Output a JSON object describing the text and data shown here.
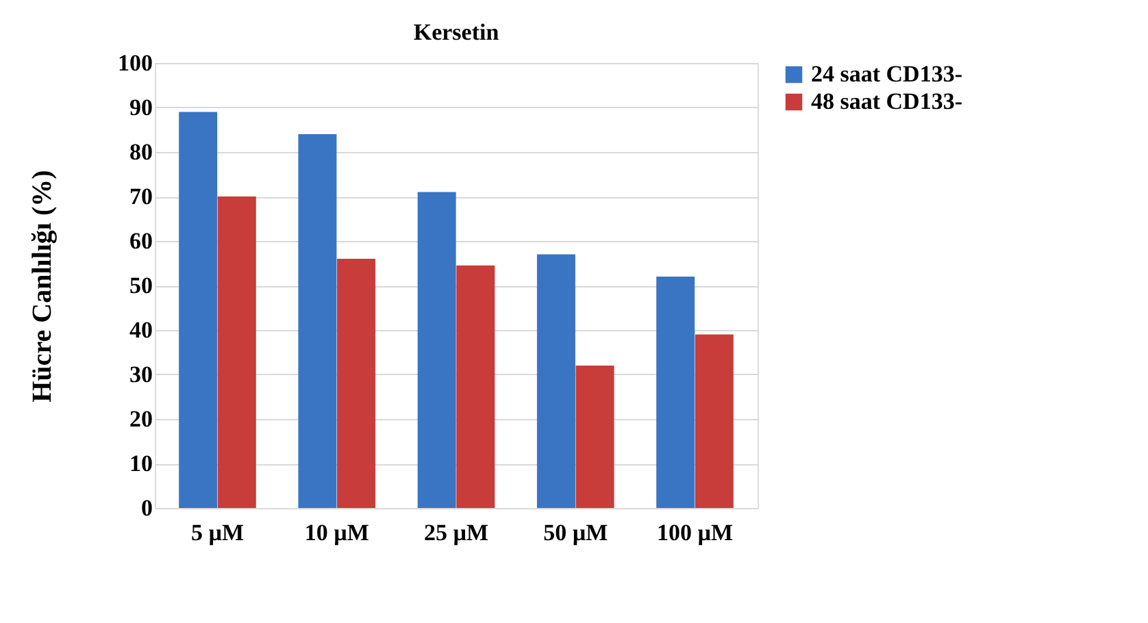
{
  "chart_data": {
    "type": "bar",
    "title": "Kersetin",
    "ylabel": "Hücre Canlılığı (%)",
    "categories": [
      "5 µM",
      "10 µM",
      "25 µM",
      "50 µM",
      "100 µM"
    ],
    "series": [
      {
        "name": "24 saat CD133-",
        "color": "#3a75c4",
        "values": [
          89,
          84,
          71,
          57,
          52
        ]
      },
      {
        "name": "48 saat CD133-",
        "color": "#c83c3a",
        "values": [
          70,
          56,
          54.5,
          32,
          39
        ]
      }
    ],
    "ylim": [
      0,
      100
    ],
    "yticks": [
      0,
      10,
      20,
      30,
      40,
      50,
      60,
      70,
      80,
      90,
      100
    ],
    "grid": "y",
    "legend": "right"
  }
}
